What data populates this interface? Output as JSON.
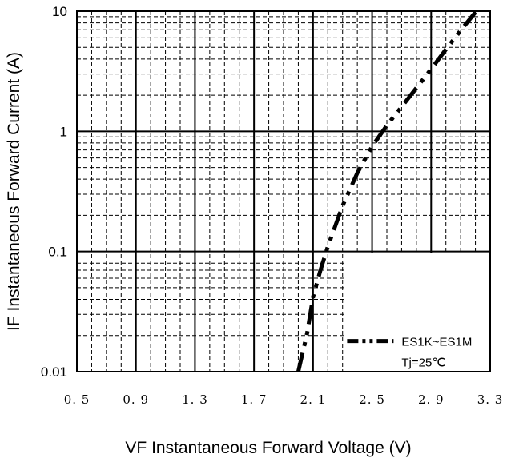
{
  "chart_data": {
    "type": "line",
    "title": "",
    "xlabel": "VF  Instantaneous Forward Voltage (V)",
    "ylabel": "IF Instantaneous Forward Current (A)",
    "xlim": [
      0.5,
      3.3
    ],
    "ylim": [
      0.01,
      10
    ],
    "y_scale": "log",
    "x_ticks": [
      0.5,
      0.9,
      1.3,
      1.7,
      2.1,
      2.5,
      2.9,
      3.3
    ],
    "x_tick_labels": [
      "0.5",
      "0.9",
      "1.3",
      "1.7",
      "2.1",
      "2.5",
      "2.9",
      "3.3"
    ],
    "y_ticks": [
      0.01,
      0.1,
      1,
      10
    ],
    "y_tick_labels": [
      "0.01",
      "0.1",
      "1",
      "10"
    ],
    "grid": true,
    "legend_position": "bottom-right",
    "series": [
      {
        "name": "ES1K~ES1M",
        "line_style": "dash-dot-dot",
        "color": "#000000",
        "x": [
          2.0,
          2.06,
          2.1,
          2.15,
          2.2,
          2.3,
          2.4,
          2.5,
          2.6,
          2.7,
          2.8,
          2.9,
          3.0,
          3.1,
          3.2
        ],
        "y": [
          0.01,
          0.021,
          0.042,
          0.07,
          0.11,
          0.24,
          0.45,
          0.75,
          1.12,
          1.6,
          2.3,
          3.3,
          4.8,
          6.9,
          9.8
        ]
      }
    ],
    "annotations": [
      "Tj=25℃"
    ]
  }
}
